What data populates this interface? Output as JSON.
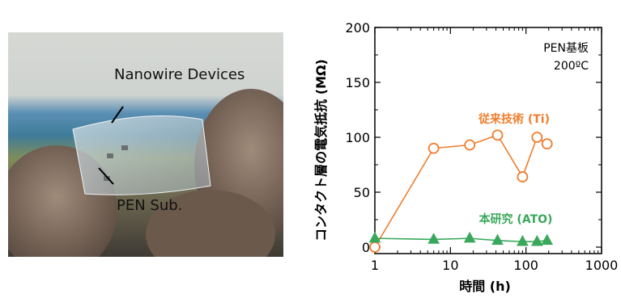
{
  "photo": {
    "label_devices": "Nanowire Devices",
    "label_substrate": "PEN Sub."
  },
  "chart_data": {
    "type": "line",
    "x_scale": "log",
    "xlim": [
      1,
      1000
    ],
    "ylim": [
      0,
      200
    ],
    "x_ticks": [
      "1",
      "10",
      "100",
      "1000"
    ],
    "y_ticks": [
      "0",
      "50",
      "100",
      "150",
      "200"
    ],
    "xlabel": "時間 (h)",
    "ylabel": "コンタクト層の電気抵抗 (MΩ)",
    "annotation": [
      "PEN基板",
      "200ºC"
    ],
    "grid": false,
    "series": [
      {
        "name": "従来技術 (Ti)",
        "marker": "circle-open",
        "color": "#f07d2e",
        "x": [
          1,
          6,
          18,
          42,
          90,
          140,
          190
        ],
        "y": [
          0,
          90,
          93,
          102,
          64,
          100,
          94
        ]
      },
      {
        "name": "本研究 (ATO)",
        "marker": "triangle-filled",
        "color": "#3aa85c",
        "x": [
          1,
          6,
          18,
          42,
          90,
          140,
          190
        ],
        "y": [
          8,
          7,
          8,
          6,
          5,
          5,
          6
        ]
      }
    ]
  }
}
